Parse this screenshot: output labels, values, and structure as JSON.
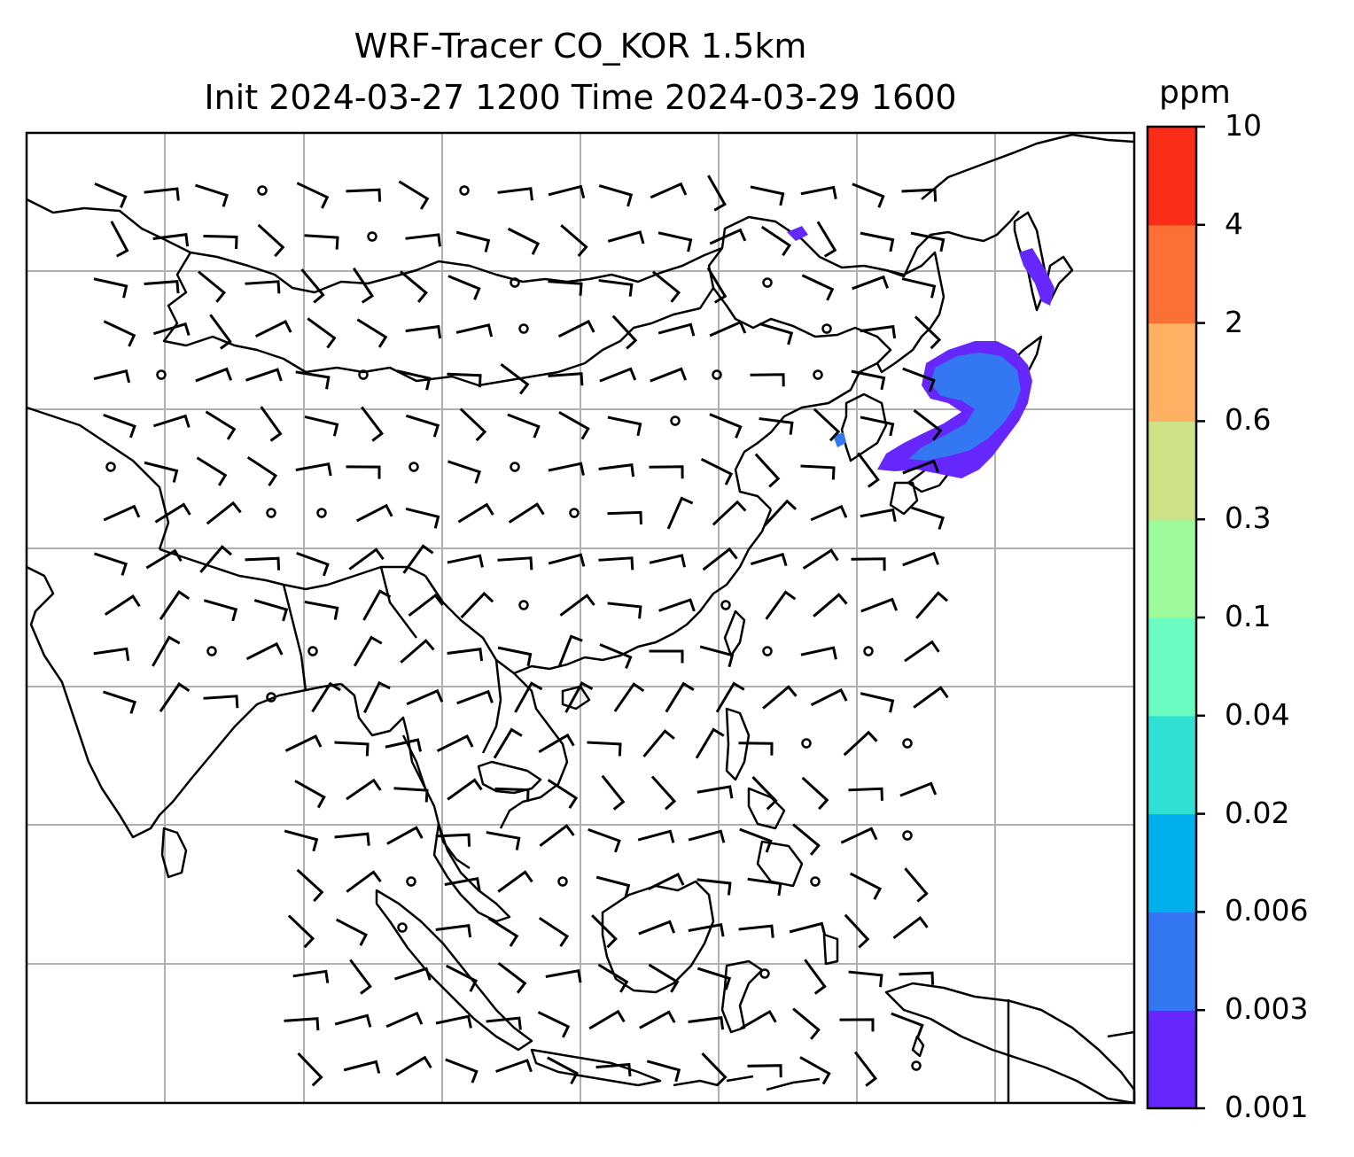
{
  "title_line1": "WRF-Tracer CO_KOR 1.5km",
  "title_line2": "Init 2024-03-27 1200 Time 2024-03-29 1600",
  "colorbar": {
    "units": "ppm",
    "levels": [
      "0.001",
      "0.003",
      "0.006",
      "0.02",
      "0.04",
      "0.1",
      "0.3",
      "0.6",
      "2",
      "4",
      "10"
    ],
    "colors": [
      "#6527fc",
      "#3378f2",
      "#00b0ec",
      "#31e0d5",
      "#6afbc0",
      "#9cfa9a",
      "#cde186",
      "#feb063",
      "#fd7035",
      "#fa2d18"
    ]
  },
  "map": {
    "coastline_color": "#000000",
    "gridline_color": "#b0b0b0",
    "plume_colors": [
      "#6527fc",
      "#3378f2"
    ]
  }
}
